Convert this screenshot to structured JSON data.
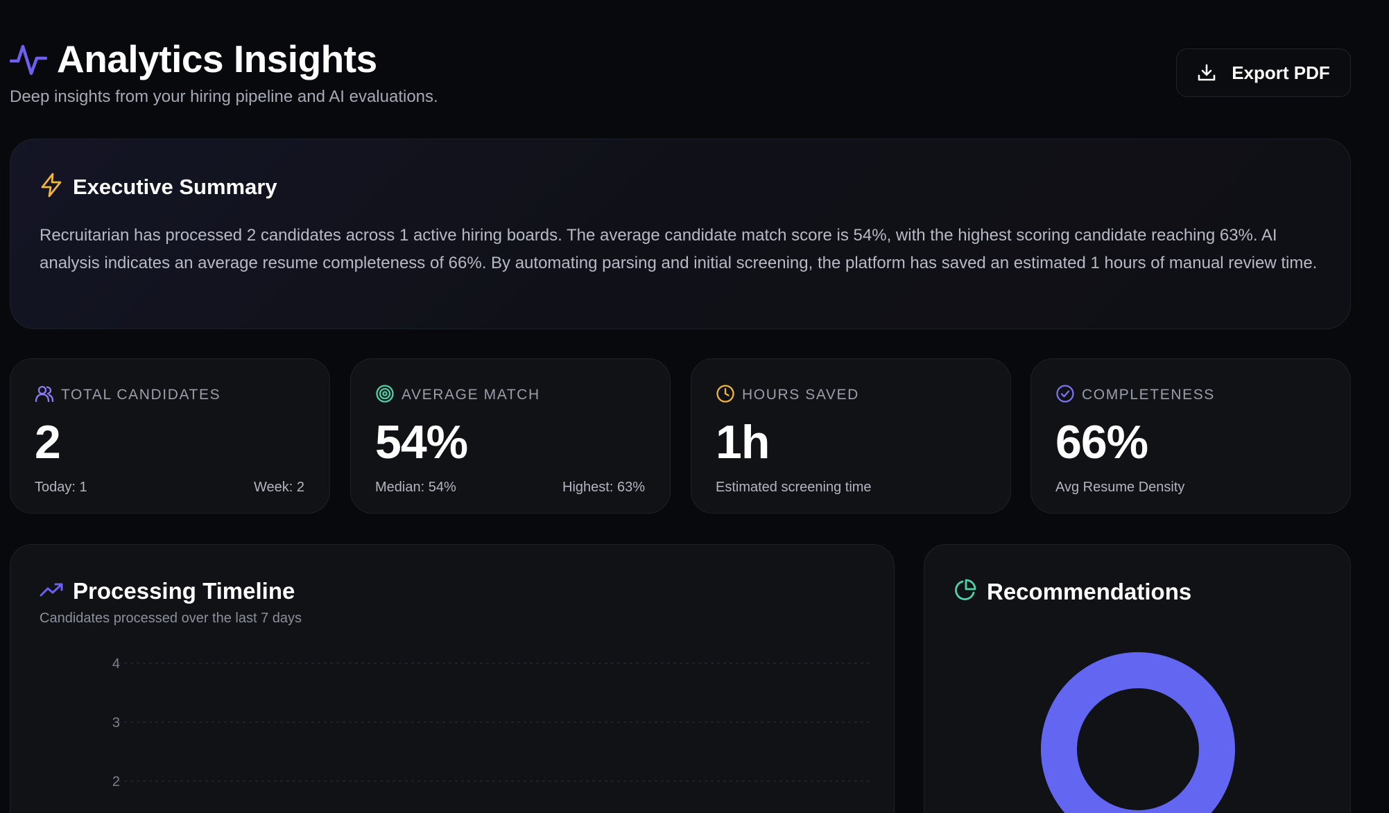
{
  "header": {
    "title": "Analytics Insights",
    "subtitle": "Deep insights from your hiring pipeline and AI evaluations.",
    "export_label": "Export PDF"
  },
  "summary": {
    "title": "Executive Summary",
    "text": "Recruitarian has processed 2 candidates across 1 active hiring boards. The average candidate match score is 54%, with the highest scoring candidate reaching 63%. AI analysis indicates an average resume completeness of 66%. By automating parsing and initial screening, the platform has saved an estimated 1 hours of manual review time."
  },
  "metrics": [
    {
      "label": "TOTAL CANDIDATES",
      "value": "2",
      "foot_left": "Today: 1",
      "foot_right": "Week: 2",
      "icon": "users-icon"
    },
    {
      "label": "AVERAGE MATCH",
      "value": "54%",
      "foot_left": "Median: 54%",
      "foot_right": "Highest: 63%",
      "icon": "target-icon"
    },
    {
      "label": "HOURS SAVED",
      "value": "1h",
      "foot_left": "Estimated screening time",
      "foot_right": "",
      "icon": "clock-icon"
    },
    {
      "label": "COMPLETENESS",
      "value": "66%",
      "foot_left": "Avg Resume Density",
      "foot_right": "",
      "icon": "check-circle-icon"
    }
  ],
  "timeline": {
    "title": "Processing Timeline",
    "subtitle": "Candidates processed over the last 7 days"
  },
  "recommendations": {
    "title": "Recommendations"
  },
  "chart_data": [
    {
      "type": "line",
      "title": "Processing Timeline",
      "subtitle": "Candidates processed over the last 7 days",
      "y_ticks": [
        "4",
        "3",
        "2"
      ],
      "ylim": [
        2,
        4
      ],
      "grid": true,
      "series": []
    },
    {
      "type": "pie",
      "title": "Recommendations",
      "slices": [
        {
          "value": 1,
          "color": "#6366f1"
        }
      ]
    }
  ],
  "colors": {
    "accent": "#6d5ff0",
    "amber": "#f2b53b",
    "teal": "#4fd1a5",
    "donut": "#6366f1",
    "background": "#08090c",
    "card": "#111216"
  }
}
